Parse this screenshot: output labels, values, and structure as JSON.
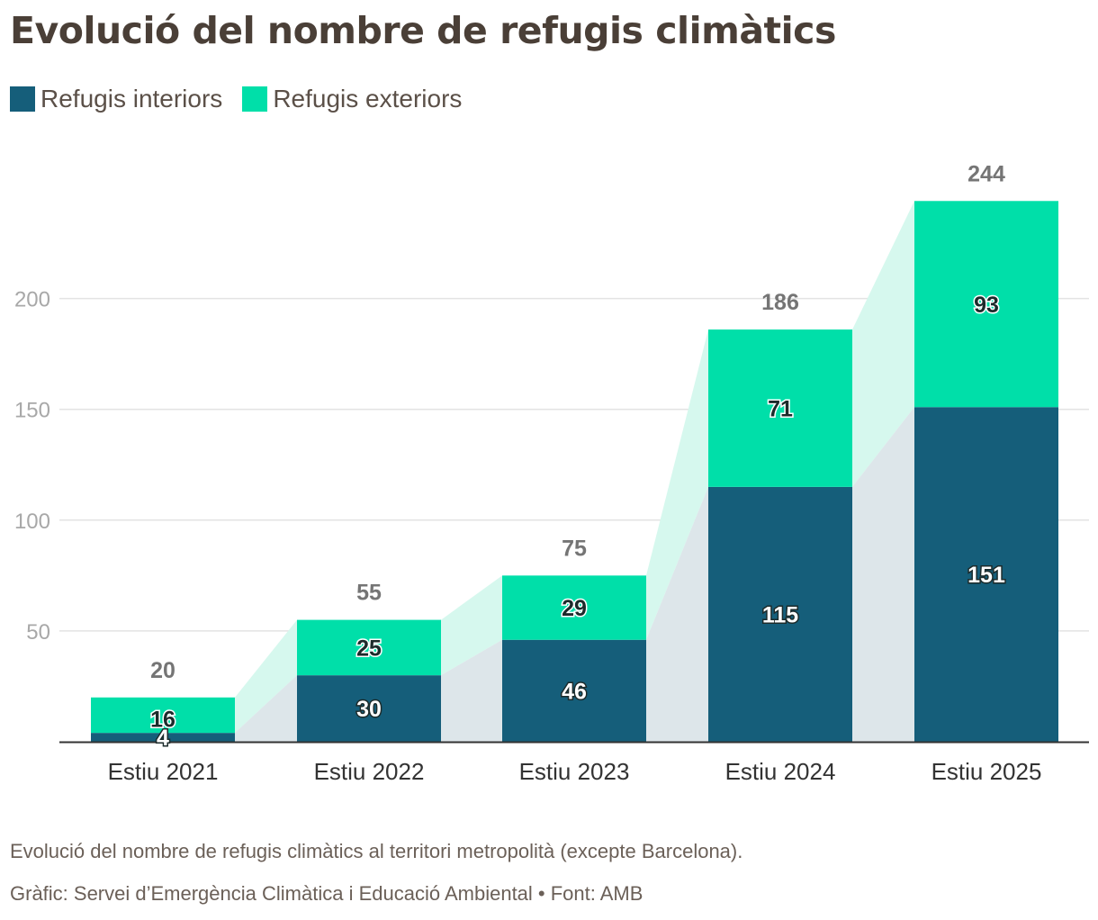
{
  "title": "Evolució del nombre de refugis climàtics",
  "legend": [
    {
      "label": "Refugis interiors",
      "color": "#155e7a"
    },
    {
      "label": "Refugis exteriors",
      "color": "#00dfa9"
    }
  ],
  "chart_data": {
    "type": "bar",
    "stacked": true,
    "categories": [
      "Estiu 2021",
      "Estiu 2022",
      "Estiu 2023",
      "Estiu 2024",
      "Estiu 2025"
    ],
    "series": [
      {
        "name": "Refugis interiors",
        "values": [
          4,
          30,
          46,
          115,
          151
        ],
        "color": "#155e7a"
      },
      {
        "name": "Refugis exteriors",
        "values": [
          16,
          25,
          29,
          71,
          93
        ],
        "color": "#00dfa9"
      }
    ],
    "totals": [
      20,
      55,
      75,
      186,
      244
    ],
    "yticks": [
      50,
      100,
      150,
      200
    ],
    "ylim": [
      0,
      250
    ],
    "grid": true,
    "legend_position": "top-left"
  },
  "footer": {
    "note": "Evolució del nombre de refugis climàtics al territori metropolità (excepte Barcelona).",
    "source": "Gràfic: Servei d’Emergència Climàtica i Educació Ambiental • Font: AMB"
  }
}
